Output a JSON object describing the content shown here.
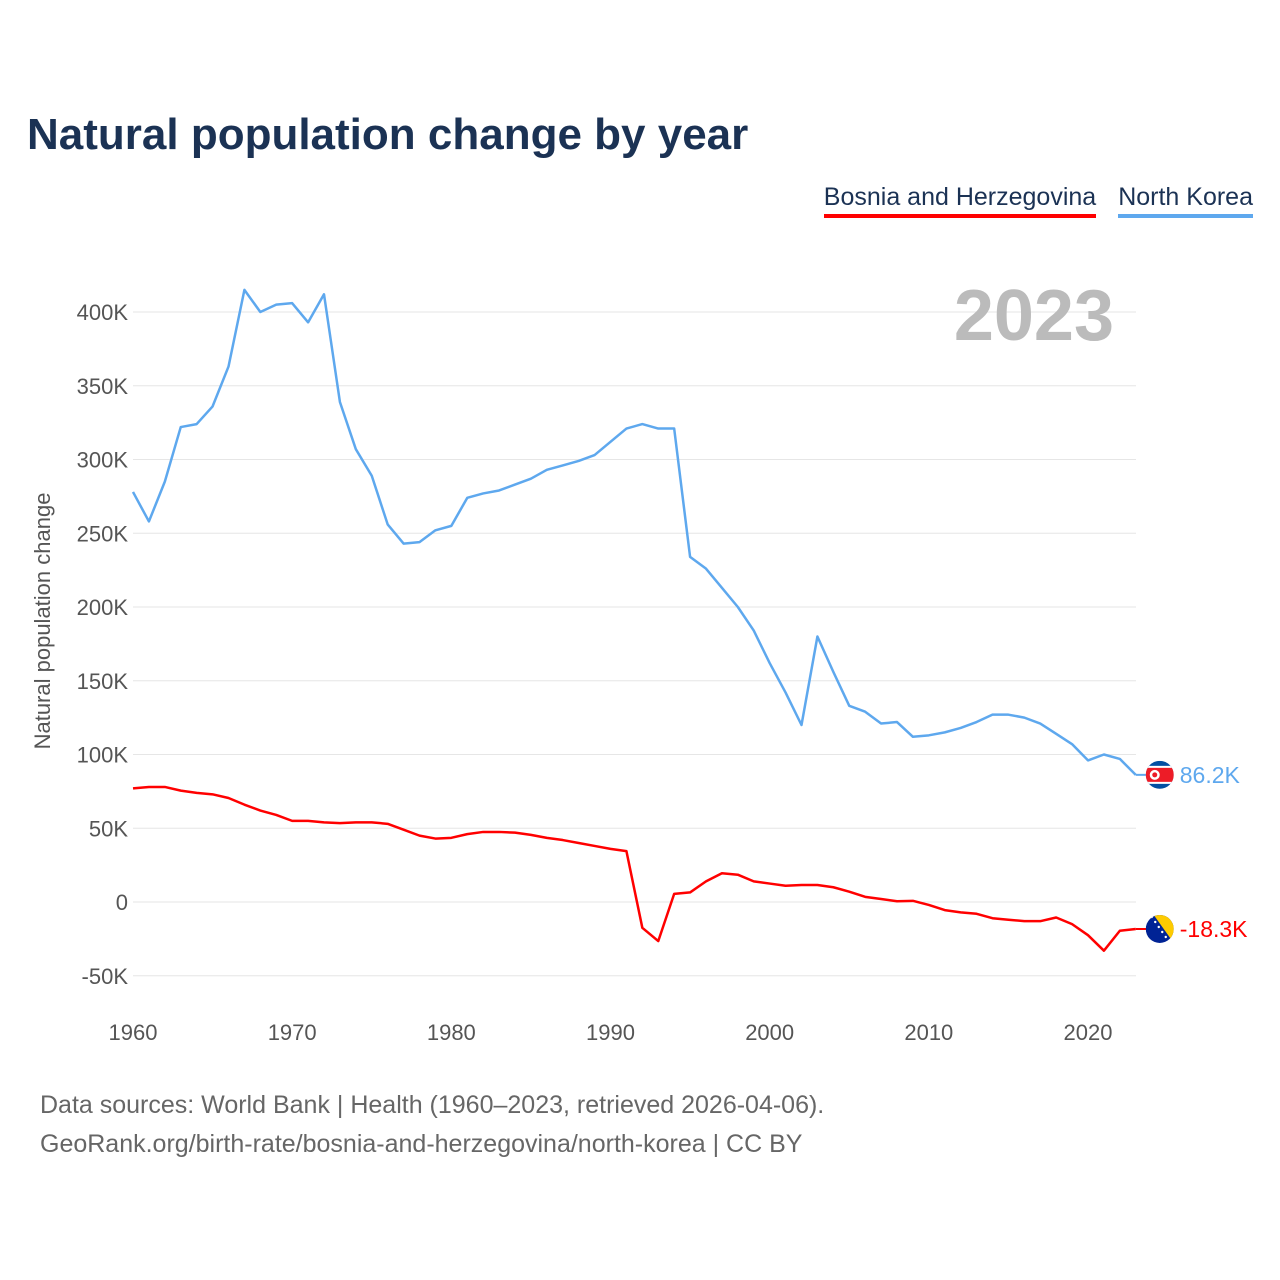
{
  "title": "Natural population change by year",
  "chart_data": {
    "type": "line",
    "title": "Natural population change by year",
    "xlabel": "",
    "ylabel": "Natural population change",
    "xlim": [
      1960,
      2023
    ],
    "ylim": [
      -50000,
      420000
    ],
    "x_ticks": [
      "1960",
      "1970",
      "1980",
      "1990",
      "2000",
      "2010",
      "2020"
    ],
    "y_ticks": [
      {
        "value": 400000,
        "label": "400K"
      },
      {
        "value": 350000,
        "label": "350K"
      },
      {
        "value": 300000,
        "label": "300K"
      },
      {
        "value": 250000,
        "label": "250K"
      },
      {
        "value": 200000,
        "label": "200K"
      },
      {
        "value": 150000,
        "label": "150K"
      },
      {
        "value": 100000,
        "label": "100K"
      },
      {
        "value": 50000,
        "label": "50K"
      },
      {
        "value": 0,
        "label": "0"
      },
      {
        "value": -50000,
        "label": "-50K"
      }
    ],
    "grid": true,
    "legend_position": "top-right",
    "year_watermark": "2023",
    "x": [
      1960,
      1961,
      1962,
      1963,
      1964,
      1965,
      1966,
      1967,
      1968,
      1969,
      1970,
      1971,
      1972,
      1973,
      1974,
      1975,
      1976,
      1977,
      1978,
      1979,
      1980,
      1981,
      1982,
      1983,
      1984,
      1985,
      1986,
      1987,
      1988,
      1989,
      1990,
      1991,
      1992,
      1993,
      1994,
      1995,
      1996,
      1997,
      1998,
      1999,
      2000,
      2001,
      2002,
      2003,
      2004,
      2005,
      2006,
      2007,
      2008,
      2009,
      2010,
      2011,
      2012,
      2013,
      2014,
      2015,
      2016,
      2017,
      2018,
      2019,
      2020,
      2021,
      2022,
      2023
    ],
    "series": [
      {
        "name": "Bosnia and Herzegovina",
        "color": "#ff0000",
        "end_label": "-18.3K",
        "flag": "bosnia-flag",
        "values": [
          77000,
          78000,
          78000,
          75500,
          74000,
          73000,
          70500,
          66000,
          62000,
          59000,
          55000,
          55000,
          54000,
          53500,
          54000,
          54000,
          53000,
          49000,
          45000,
          43000,
          43500,
          46000,
          47500,
          47500,
          47000,
          45500,
          43500,
          42000,
          40000,
          38000,
          36000,
          34500,
          -17500,
          -26500,
          5500,
          6500,
          14000,
          19500,
          18500,
          14000,
          12500,
          11000,
          11500,
          11500,
          10000,
          7000,
          3500,
          2000,
          500,
          800,
          -2000,
          -5500,
          -7000,
          -8000,
          -11000,
          -12000,
          -13000,
          -13000,
          -10500,
          -15000,
          -22500,
          -33000,
          -19500,
          -18300
        ]
      },
      {
        "name": "North Korea",
        "color": "#5ea8ee",
        "end_label": "86.2K",
        "flag": "north-korea-flag",
        "values": [
          278000,
          258000,
          285000,
          322000,
          324000,
          336000,
          363000,
          415000,
          400000,
          405000,
          406000,
          393000,
          412000,
          339000,
          307000,
          289000,
          256000,
          243000,
          244000,
          252000,
          255000,
          274000,
          277000,
          279000,
          283000,
          287000,
          293000,
          296000,
          299000,
          303000,
          312000,
          321000,
          324000,
          321000,
          321000,
          234000,
          226000,
          213000,
          200000,
          184000,
          162000,
          142000,
          120000,
          180000,
          156000,
          133000,
          129000,
          121000,
          122000,
          112000,
          113000,
          115000,
          118000,
          122000,
          127000,
          127000,
          125000,
          121000,
          114000,
          107000,
          96000,
          100000,
          97000,
          86200
        ]
      }
    ]
  },
  "footer": {
    "line1": "Data sources: World Bank | Health (1960–2023, retrieved 2026-04-06).",
    "line2": "GeoRank.org/birth-rate/bosnia-and-herzegovina/north-korea | CC BY"
  }
}
